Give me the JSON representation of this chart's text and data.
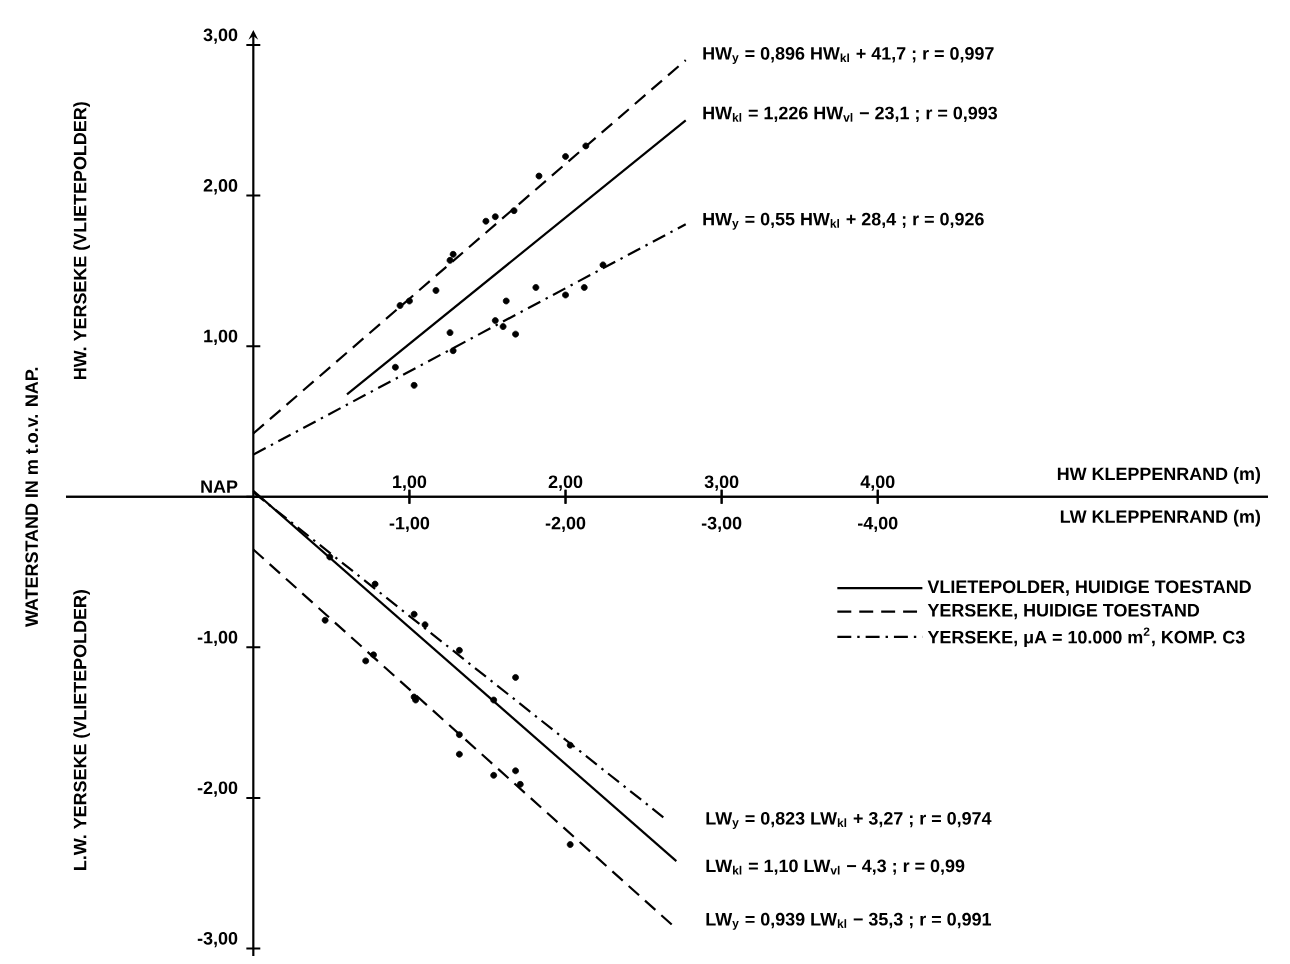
{
  "chart_data": {
    "type": "line",
    "ylabel": "WATERSTAND IN m t.o.v. NAP.",
    "xlabel": "HW KLEPPENRAND (m)",
    "x2label": "LW KLEPPENRAND (m)",
    "xlim": [
      -1.2,
      6.5
    ],
    "xticks": [
      {
        "value": 1,
        "label": "1,00"
      },
      {
        "value": 2,
        "label": "2,00"
      },
      {
        "value": 3,
        "label": "3,00"
      },
      {
        "value": 4,
        "label": "4,00"
      }
    ],
    "x2lim": [
      1.2,
      -6.5
    ],
    "x2ticks": [
      {
        "value": -1,
        "label": "-1,00"
      },
      {
        "value": -2,
        "label": "-2,00"
      },
      {
        "value": -3,
        "label": "-3,00"
      },
      {
        "value": -4,
        "label": "-4,00"
      }
    ],
    "ylim": [
      -3.05,
      3.1
    ],
    "yticks": [
      {
        "value": -3,
        "label": "-3,00"
      },
      {
        "value": -2,
        "label": "-2,00"
      },
      {
        "value": -1,
        "label": "-1,00"
      },
      {
        "value": 0,
        "label": "NAP"
      },
      {
        "value": 1,
        "label": "1,00"
      },
      {
        "value": 2,
        "label": "2,00"
      },
      {
        "value": 3,
        "label": "3,00"
      }
    ],
    "legend": "right",
    "annotations": [
      "HW$_{y}$ = 0,896 HW$_{kl}$ + 41,7 ; r = 0,997",
      "HW$_{kl}$ = 1,226 HW$_{vl}$ − 23,1 ; r = 0,993",
      "HW$_{y}$ = 0,55 HW$_{kl}$ + 28,4 ; r = 0,926",
      "LW$_{y}$ = 0,823 LW$_{kl}$ + 3,27 ; r = 0,974",
      "LW$_{kl}$ = 1,10 LW$_{vl}$ − 4,3 ; r = 0,99",
      "LW$_{y}$ = 0,939 LW$_{kl}$ − 35,3 ; r = 0,991",
      "HW. YERSEKE (VLIETEPOLDER)",
      "L.W. YERSEKE (VLIETEPOLDER)"
    ],
    "series": [
      {
        "name": "VLIETEPOLDER, HUIDIGE TOESTAND",
        "color": "#000000",
        "line_style": "solid",
        "marker": "none",
        "x": [
          0.6,
          2.77
        ],
        "values": [
          0.68,
          2.5
        ]
      },
      {
        "name": "YERSEKE, HUIDIGE TOESTAND",
        "color": "#000000",
        "line_style": "dashed",
        "marker": "none",
        "x": [
          0,
          2.77
        ],
        "values": [
          0.42,
          2.9
        ]
      },
      {
        "name": "YERSEKE, μA = 10.000 m$^{2}$, KOMP. C3",
        "color": "#000000",
        "line_style": "dashdot",
        "marker": "none",
        "x": [
          0,
          2.77
        ],
        "values": [
          0.28,
          1.81
        ]
      },
      {
        "color": "#000000",
        "type": "scatter",
        "marker": "circle",
        "x": [
          0.94,
          1.0,
          1.28,
          1.26,
          1.49,
          1.55,
          1.67,
          1.83,
          2.0,
          2.13
        ],
        "values": [
          1.27,
          1.3,
          1.61,
          1.57,
          1.83,
          1.86,
          1.9,
          2.13,
          2.26,
          2.33
        ]
      },
      {
        "color": "#000000",
        "type": "scatter",
        "marker": "circle",
        "x": [
          0.91,
          1.03,
          1.17,
          1.26,
          1.28,
          1.55,
          1.6,
          1.62,
          1.68,
          1.81,
          2.0,
          2.12,
          2.24
        ],
        "values": [
          0.86,
          0.74,
          1.37,
          1.09,
          0.97,
          1.17,
          1.13,
          1.3,
          1.08,
          1.39,
          1.34,
          1.39,
          1.54
        ]
      },
      {
        "color": "#000000",
        "axis": "x2",
        "line_style": "solid",
        "marker": "none",
        "x": [
          0,
          -2.71
        ],
        "values": [
          0.04,
          -2.42
        ]
      },
      {
        "color": "#000000",
        "axis": "x2",
        "line_style": "dashed",
        "marker": "none",
        "x": [
          0,
          -2.69
        ],
        "values": [
          -0.35,
          -2.85
        ]
      },
      {
        "color": "#000000",
        "axis": "x2",
        "line_style": "dashdot",
        "marker": "none",
        "x": [
          0,
          -2.64
        ],
        "values": [
          0.03,
          -2.14
        ]
      },
      {
        "color": "#000000",
        "type": "scatter",
        "axis": "x2",
        "marker": "circle",
        "x": [
          -0.46,
          -0.72,
          -0.77,
          -1.03,
          -1.04,
          -1.32,
          -1.32,
          -1.54,
          -1.68,
          -1.71,
          -2.03
        ],
        "values": [
          -0.82,
          -1.09,
          -1.05,
          -1.33,
          -1.35,
          -1.58,
          -1.71,
          -1.85,
          -1.82,
          -1.91,
          -2.31
        ]
      },
      {
        "color": "#000000",
        "type": "scatter",
        "axis": "x2",
        "marker": "circle",
        "x": [
          -0.49,
          -0.78,
          -1.03,
          -1.1,
          -1.32,
          -1.54,
          -1.68,
          -2.03
        ],
        "values": [
          -0.4,
          -0.58,
          -0.78,
          -0.85,
          -1.02,
          -1.35,
          -1.2,
          -1.65
        ]
      }
    ]
  }
}
